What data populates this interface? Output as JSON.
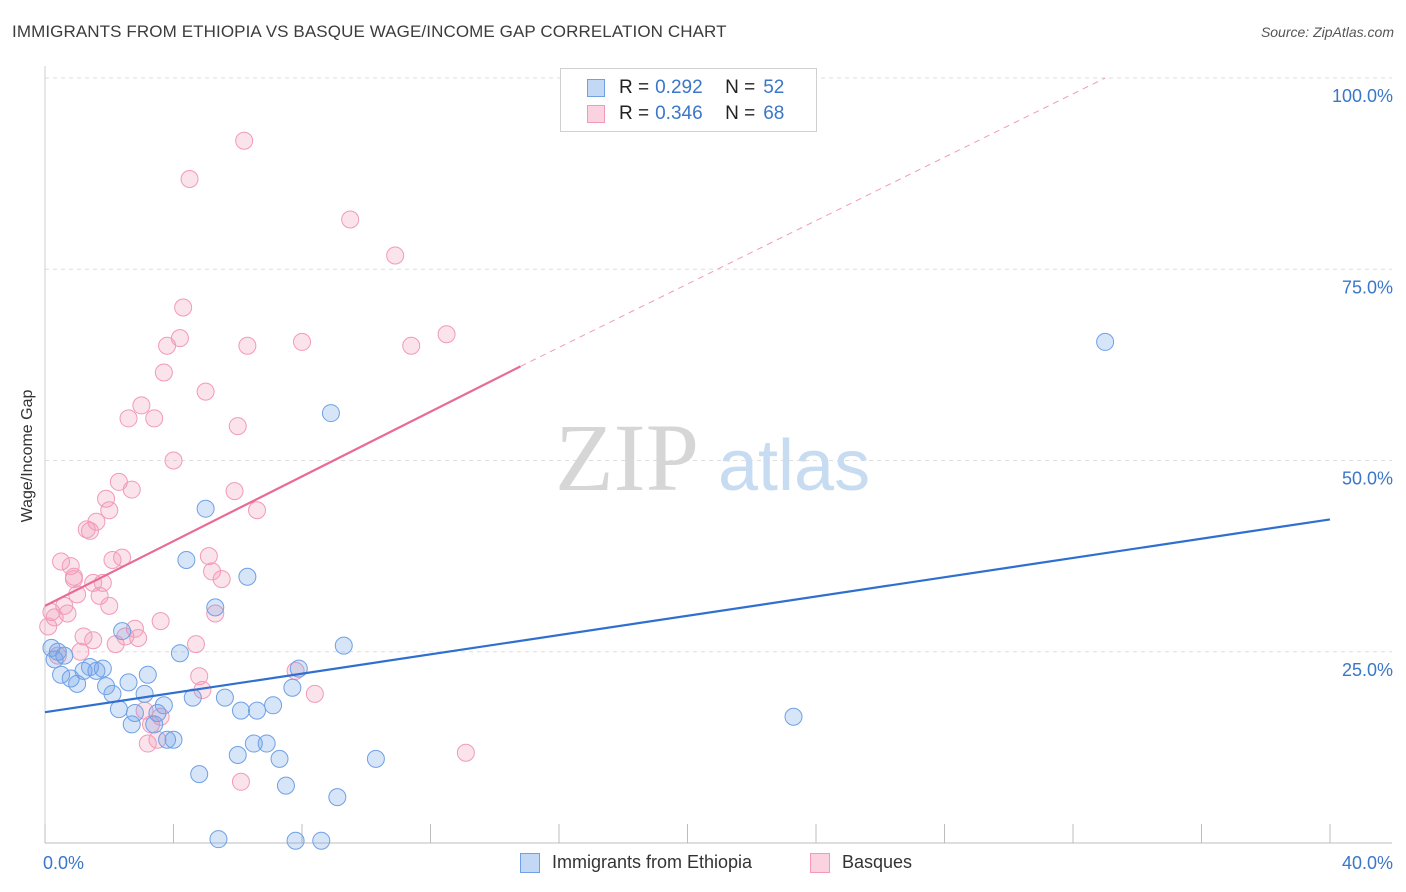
{
  "title": "IMMIGRANTS FROM ETHIOPIA VS BASQUE WAGE/INCOME GAP CORRELATION CHART",
  "source": "Source: ZipAtlas.com",
  "watermark": {
    "zip": "ZIP",
    "atlas": "atlas"
  },
  "legend": {
    "series1": {
      "r_label": "R =",
      "r_value": "0.292",
      "n_label": "N =",
      "n_value": "52"
    },
    "series2": {
      "r_label": "R =",
      "r_value": "0.346",
      "n_label": "N =",
      "n_value": "68"
    }
  },
  "chart_data": {
    "type": "scatter",
    "title": "IMMIGRANTS FROM ETHIOPIA VS BASQUE WAGE/INCOME GAP CORRELATION CHART",
    "xlabel": "",
    "ylabel": "Wage/Income Gap",
    "xlim": [
      0,
      40
    ],
    "ylim": [
      0,
      100
    ],
    "x_tick_labels": [
      "0.0%",
      "40.0%"
    ],
    "y_tick_labels": [
      "25.0%",
      "50.0%",
      "75.0%",
      "100.0%"
    ],
    "y_ticks": [
      25,
      50,
      75,
      100
    ],
    "grid": true,
    "legend_position": "top-center",
    "colors": {
      "ethiopia": "#6fa0e6",
      "basques": "#f29ab8",
      "ethiopia_line": "#2f6fd0",
      "basques_line": "#e86b95"
    },
    "series": [
      {
        "name": "Immigrants from Ethiopia",
        "r": 0.292,
        "n": 52,
        "trend": {
          "x": [
            0,
            40
          ],
          "y": [
            17.1,
            42.3
          ]
        },
        "points": [
          [
            0.2,
            25.5
          ],
          [
            0.3,
            24.0
          ],
          [
            0.4,
            25.0
          ],
          [
            0.5,
            22.0
          ],
          [
            0.6,
            24.5
          ],
          [
            0.8,
            21.5
          ],
          [
            1.0,
            20.8
          ],
          [
            1.2,
            22.5
          ],
          [
            1.4,
            23.0
          ],
          [
            1.6,
            22.5
          ],
          [
            1.8,
            22.8
          ],
          [
            1.9,
            20.5
          ],
          [
            2.1,
            19.5
          ],
          [
            2.3,
            17.5
          ],
          [
            2.4,
            27.7
          ],
          [
            2.6,
            21.0
          ],
          [
            2.7,
            15.5
          ],
          [
            2.8,
            17.0
          ],
          [
            3.1,
            19.5
          ],
          [
            3.2,
            22.0
          ],
          [
            3.4,
            15.5
          ],
          [
            3.5,
            17.0
          ],
          [
            3.7,
            18.0
          ],
          [
            3.8,
            13.5
          ],
          [
            4.0,
            13.5
          ],
          [
            4.2,
            24.8
          ],
          [
            4.4,
            37.0
          ],
          [
            4.6,
            19.0
          ],
          [
            4.8,
            9.0
          ],
          [
            5.0,
            43.7
          ],
          [
            5.3,
            30.8
          ],
          [
            5.4,
            0.5
          ],
          [
            5.6,
            19.0
          ],
          [
            6.0,
            11.5
          ],
          [
            6.1,
            17.3
          ],
          [
            6.3,
            34.8
          ],
          [
            6.5,
            13.0
          ],
          [
            6.6,
            17.3
          ],
          [
            6.9,
            13.0
          ],
          [
            7.1,
            18.0
          ],
          [
            7.3,
            11.0
          ],
          [
            7.5,
            7.5
          ],
          [
            7.7,
            20.3
          ],
          [
            7.8,
            0.3
          ],
          [
            7.9,
            22.8
          ],
          [
            8.6,
            0.3
          ],
          [
            8.9,
            56.2
          ],
          [
            9.1,
            6.0
          ],
          [
            9.3,
            25.8
          ],
          [
            10.3,
            11.0
          ],
          [
            23.3,
            16.5
          ],
          [
            33.0,
            65.5
          ]
        ]
      },
      {
        "name": "Basques",
        "r": 0.346,
        "n": 68,
        "trend": {
          "x": [
            0,
            14.8
          ],
          "y": [
            31.0,
            62.3
          ]
        },
        "trend_dashed": {
          "x": [
            14.8,
            33.0
          ],
          "y": [
            62.3,
            100
          ]
        },
        "points": [
          [
            0.1,
            28.3
          ],
          [
            0.2,
            30.2
          ],
          [
            0.3,
            29.5
          ],
          [
            0.4,
            24.5
          ],
          [
            0.5,
            36.8
          ],
          [
            0.6,
            31.0
          ],
          [
            0.7,
            30.0
          ],
          [
            0.8,
            36.2
          ],
          [
            0.9,
            34.5
          ],
          [
            1.0,
            32.5
          ],
          [
            1.1,
            25.0
          ],
          [
            1.2,
            27.0
          ],
          [
            1.3,
            41.0
          ],
          [
            1.4,
            40.8
          ],
          [
            1.5,
            26.5
          ],
          [
            1.6,
            42.0
          ],
          [
            1.7,
            32.3
          ],
          [
            1.8,
            34.0
          ],
          [
            1.9,
            45.0
          ],
          [
            2.0,
            43.5
          ],
          [
            2.1,
            37.0
          ],
          [
            2.2,
            26.0
          ],
          [
            2.3,
            47.2
          ],
          [
            2.4,
            37.3
          ],
          [
            2.5,
            27.0
          ],
          [
            2.6,
            55.5
          ],
          [
            2.7,
            46.2
          ],
          [
            2.8,
            28.0
          ],
          [
            2.9,
            26.8
          ],
          [
            3.0,
            57.2
          ],
          [
            3.1,
            17.3
          ],
          [
            3.2,
            13.0
          ],
          [
            3.3,
            15.5
          ],
          [
            3.4,
            55.5
          ],
          [
            3.5,
            13.5
          ],
          [
            3.6,
            16.5
          ],
          [
            3.7,
            61.5
          ],
          [
            3.8,
            65.0
          ],
          [
            4.0,
            50.0
          ],
          [
            4.2,
            66.0
          ],
          [
            4.3,
            70.0
          ],
          [
            4.5,
            86.8
          ],
          [
            4.7,
            26.0
          ],
          [
            4.8,
            21.8
          ],
          [
            4.9,
            20.0
          ],
          [
            5.0,
            59.0
          ],
          [
            5.1,
            37.5
          ],
          [
            5.2,
            35.5
          ],
          [
            5.3,
            30.0
          ],
          [
            5.5,
            34.5
          ],
          [
            5.9,
            46.0
          ],
          [
            6.0,
            54.5
          ],
          [
            6.1,
            8.0
          ],
          [
            6.2,
            91.8
          ],
          [
            6.3,
            65.0
          ],
          [
            6.6,
            43.5
          ],
          [
            7.8,
            22.5
          ],
          [
            8.0,
            65.5
          ],
          [
            8.4,
            19.5
          ],
          [
            9.5,
            81.5
          ],
          [
            10.9,
            76.8
          ],
          [
            11.4,
            65.0
          ],
          [
            12.5,
            66.5
          ],
          [
            13.1,
            11.8
          ],
          [
            1.5,
            34.0
          ],
          [
            0.9,
            34.8
          ],
          [
            2.0,
            31.0
          ],
          [
            3.6,
            29.0
          ]
        ]
      }
    ]
  },
  "bottom_legend": {
    "series1": "Immigrants from Ethiopia",
    "series2": "Basques"
  }
}
